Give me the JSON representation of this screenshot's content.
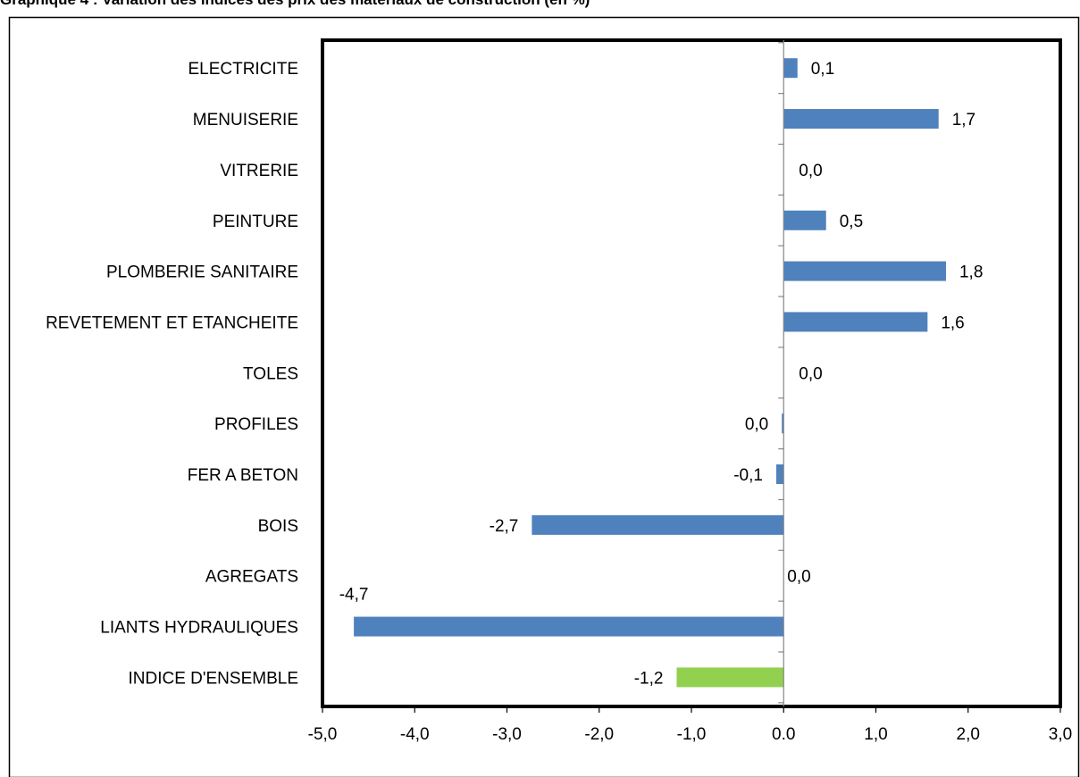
{
  "page": {
    "title": "Graphique 4 : Variation des indices des prix des matériaux de construction (en %)"
  },
  "chart_data": {
    "type": "bar",
    "orientation": "horizontal",
    "title": "Graphique 4 : Variation des indices des prix des matériaux de construction (en %)",
    "xlabel": "",
    "ylabel": "",
    "xlim": [
      -5.0,
      3.0
    ],
    "x_ticks": [
      -5.0,
      -4.0,
      -3.0,
      -2.0,
      -1.0,
      0.0,
      1.0,
      2.0,
      3.0
    ],
    "x_tick_labels": [
      "-5,0",
      "-4,0",
      "-3,0",
      "-2,0",
      "-1,0",
      "0.0",
      "1,0",
      "2,0",
      "3,0"
    ],
    "grid": false,
    "legend": "none",
    "categories": [
      "ELECTRICITE",
      "MENUISERIE",
      "VITRERIE",
      "PEINTURE",
      "PLOMBERIE SANITAIRE",
      "REVETEMENT ET ETANCHEITE",
      "TOLES",
      "PROFILES",
      "FER A BETON",
      "BOIS",
      "AGREGATS",
      "LIANTS HYDRAULIQUES",
      "INDICE D'ENSEMBLE"
    ],
    "values": [
      0.15,
      1.68,
      0.0,
      0.46,
      1.76,
      1.56,
      0.0,
      -0.02,
      -0.08,
      -2.73,
      0.0,
      -4.66,
      -1.16
    ],
    "value_labels": [
      "0,1",
      "1,7",
      "0,0",
      "0,5",
      "1,8",
      "1,6",
      "0,0",
      "0,0",
      "-0,1",
      "-2,7",
      "0,0",
      "-4,7",
      "-1,2"
    ],
    "colors": {
      "default": "#4F81BD",
      "highlight": "#92D050",
      "highlight_category": "INDICE D'ENSEMBLE"
    }
  }
}
